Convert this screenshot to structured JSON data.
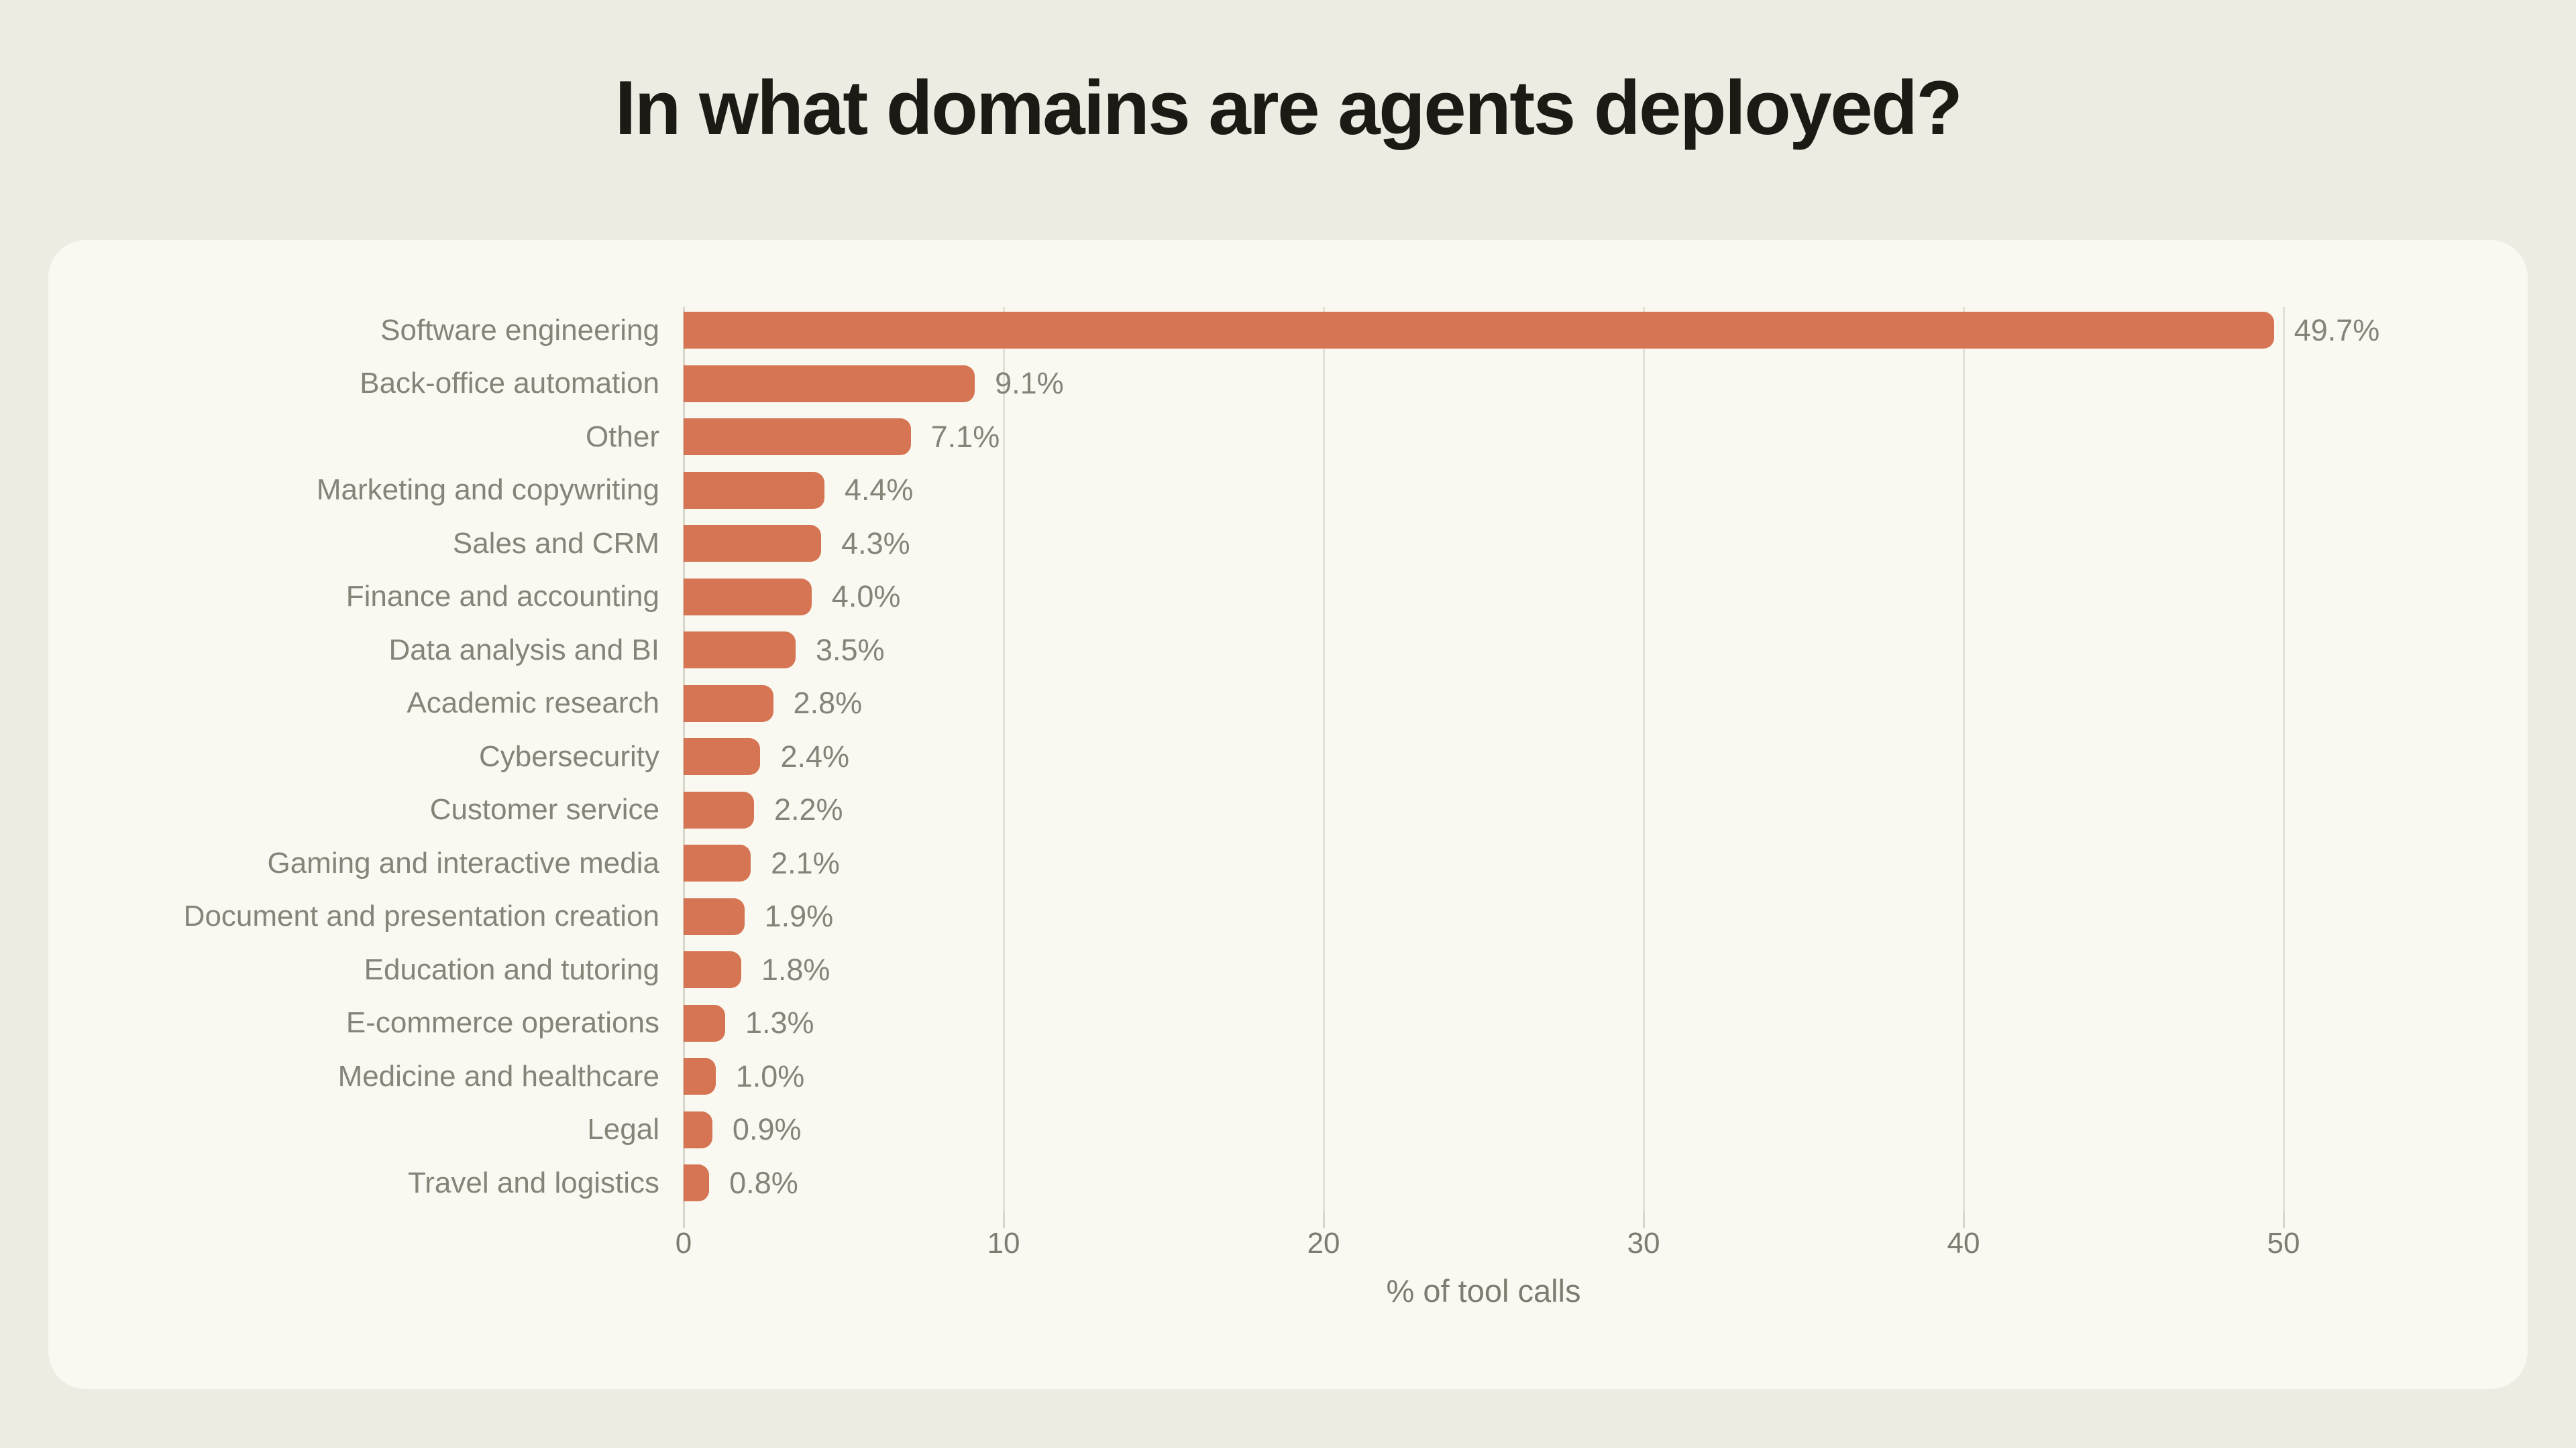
{
  "page": {
    "title": "In what domains are agents deployed?"
  },
  "chart_data": {
    "type": "bar",
    "orientation": "horizontal",
    "title": "In what domains are agents deployed?",
    "xlabel": "% of tool calls",
    "xlim": [
      0,
      50
    ],
    "xticks": [
      0,
      10,
      20,
      30,
      40,
      50
    ],
    "grid": true,
    "legend": false,
    "categories": [
      "Software engineering",
      "Back-office automation",
      "Other",
      "Marketing and copywriting",
      "Sales and CRM",
      "Finance and accounting",
      "Data analysis and BI",
      "Academic research",
      "Cybersecurity",
      "Customer service",
      "Gaming and interactive media",
      "Document and presentation creation",
      "Education and tutoring",
      "E-commerce operations",
      "Medicine and healthcare",
      "Legal",
      "Travel and logistics"
    ],
    "values": [
      49.7,
      9.1,
      7.1,
      4.4,
      4.3,
      4.0,
      3.5,
      2.8,
      2.4,
      2.2,
      2.1,
      1.9,
      1.8,
      1.3,
      1.0,
      0.9,
      0.8
    ],
    "value_labels": [
      "49.7%",
      "9.1%",
      "7.1%",
      "4.4%",
      "4.3%",
      "4.0%",
      "3.5%",
      "2.8%",
      "2.4%",
      "2.2%",
      "2.1%",
      "1.9%",
      "1.8%",
      "1.3%",
      "1.0%",
      "0.9%",
      "0.8%"
    ],
    "bar_color": "#D67553"
  },
  "colors": {
    "page_bg": "#EDECE2",
    "card_bg": "#FAF9F1",
    "bar": "#D67553",
    "title_text": "#1B1A15",
    "label_text": "#868478",
    "tick_text": "#7E7C70",
    "gridline": "#E3E1D6",
    "zero_line": "#D8D6CB"
  }
}
